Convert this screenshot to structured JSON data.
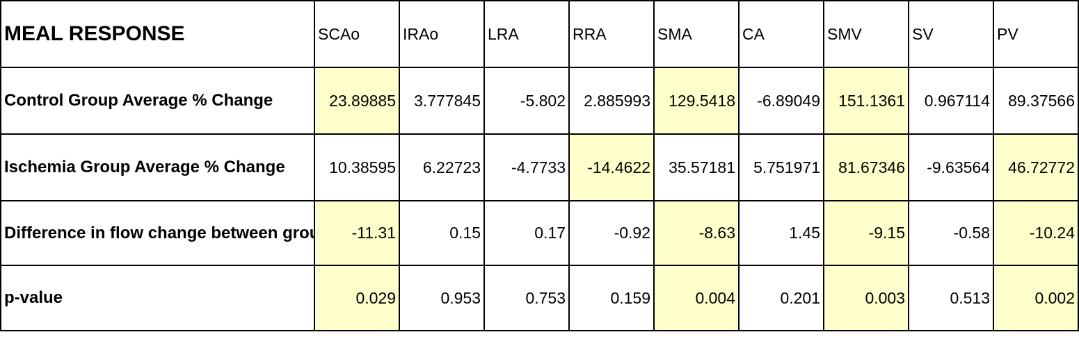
{
  "table": {
    "title": "MEAL RESPONSE",
    "columns": [
      "SCAo",
      "IRAo",
      "LRA",
      "RRA",
      "SMA",
      "CA",
      "SMV",
      "SV",
      "PV"
    ],
    "rows": [
      {
        "label": "Control Group Average % Change",
        "values": [
          "23.89885",
          "3.777845",
          "-5.802",
          "2.885993",
          "129.5418",
          "-6.89049",
          "151.1361",
          "0.967114",
          "89.37566"
        ]
      },
      {
        "label": "Ischemia Group Average % Change",
        "values": [
          "10.38595",
          "6.22723",
          "-4.7733",
          "-14.4622",
          "35.57181",
          "5.751971",
          "81.67346",
          "-9.63564",
          "46.72772"
        ]
      },
      {
        "label": "Difference in flow change between groups (mL/cycle)",
        "values": [
          "-11.31",
          "0.15",
          "0.17",
          "-0.92",
          "-8.63",
          "1.45",
          "-9.15",
          "-0.58",
          "-10.24"
        ]
      },
      {
        "label": "p-value",
        "values": [
          "0.029",
          "0.953",
          "0.753",
          "0.159",
          "0.004",
          "0.201",
          "0.003",
          "0.513",
          "0.002"
        ]
      }
    ],
    "highlight_color": "#ffffcc"
  }
}
